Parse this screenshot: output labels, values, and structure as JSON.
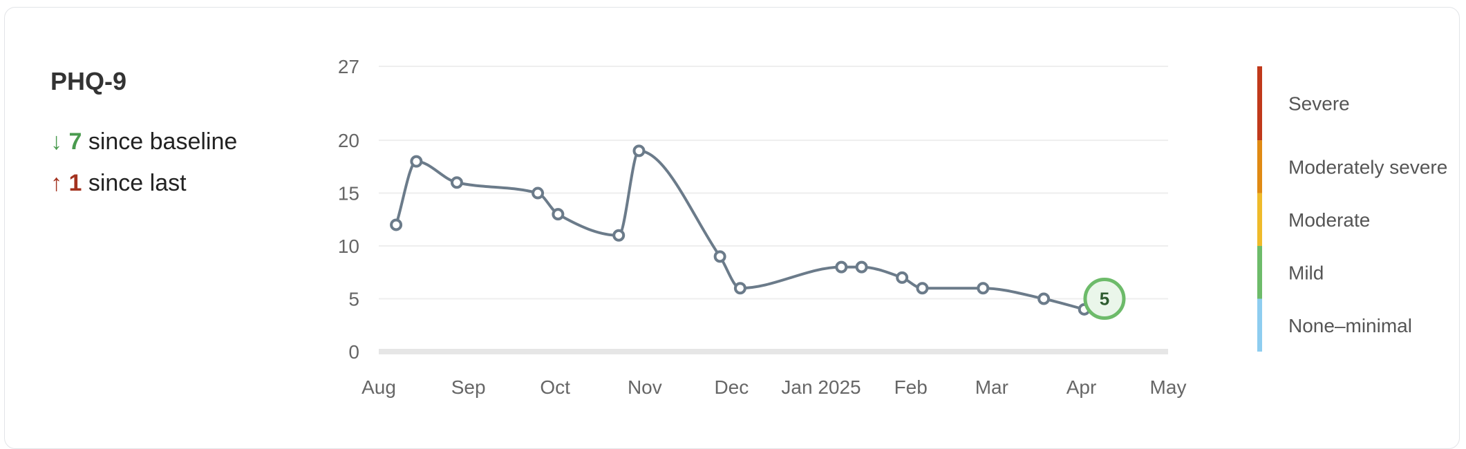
{
  "panel": {
    "title": "PHQ-9",
    "since_baseline": {
      "arrow": "↓",
      "value": "7",
      "text": "since baseline",
      "color": "#4a9b4f"
    },
    "since_last": {
      "arrow": "↑",
      "value": "1",
      "text": "since last",
      "color": "#a3321f"
    }
  },
  "chart_data": {
    "type": "line",
    "title": "PHQ-9",
    "xlabel": "",
    "ylabel": "",
    "ylim": [
      0,
      27
    ],
    "yticks": [
      0,
      5,
      10,
      15,
      20,
      27
    ],
    "xlim": [
      "2024-08-01",
      "2025-05-01"
    ],
    "xticks": [
      {
        "date": "2024-08-01",
        "label": "Aug"
      },
      {
        "date": "2024-09-01",
        "label": "Sep"
      },
      {
        "date": "2024-10-01",
        "label": "Oct"
      },
      {
        "date": "2024-11-01",
        "label": "Nov"
      },
      {
        "date": "2024-12-01",
        "label": "Dec"
      },
      {
        "date": "2025-01-01",
        "label": "Jan 2025"
      },
      {
        "date": "2025-02-01",
        "label": "Feb"
      },
      {
        "date": "2025-03-01",
        "label": "Mar"
      },
      {
        "date": "2025-04-01",
        "label": "Apr"
      },
      {
        "date": "2025-05-01",
        "label": "May"
      }
    ],
    "grid": true,
    "series": [
      {
        "points": [
          {
            "date": "2024-08-07",
            "value": 12
          },
          {
            "date": "2024-08-14",
            "value": 18
          },
          {
            "date": "2024-08-28",
            "value": 16
          },
          {
            "date": "2024-09-25",
            "value": 15
          },
          {
            "date": "2024-10-02",
            "value": 13
          },
          {
            "date": "2024-10-23",
            "value": 11
          },
          {
            "date": "2024-10-30",
            "value": 19
          },
          {
            "date": "2024-11-27",
            "value": 9
          },
          {
            "date": "2024-12-04",
            "value": 6
          },
          {
            "date": "2025-01-08",
            "value": 8
          },
          {
            "date": "2025-01-15",
            "value": 8
          },
          {
            "date": "2025-01-29",
            "value": 7
          },
          {
            "date": "2025-02-05",
            "value": 6
          },
          {
            "date": "2025-02-26",
            "value": 6
          },
          {
            "date": "2025-03-19",
            "value": 5
          },
          {
            "date": "2025-04-02",
            "value": 4
          }
        ]
      }
    ],
    "latest": {
      "date": "2025-04-09",
      "value": 5,
      "label": "5"
    },
    "line_color": "#6b7b8a",
    "severity_bands": [
      {
        "label": "Severe",
        "min": 20,
        "max": 27,
        "color": "#c0391b"
      },
      {
        "label": "Moderately severe",
        "min": 15,
        "max": 20,
        "color": "#e08a13"
      },
      {
        "label": "Moderate",
        "min": 10,
        "max": 15,
        "color": "#efba2a"
      },
      {
        "label": "Mild",
        "min": 5,
        "max": 10,
        "color": "#6dbb6a"
      },
      {
        "label": "None–minimal",
        "min": 0,
        "max": 5,
        "color": "#8ecdf0"
      }
    ],
    "legend_placement": "right"
  }
}
